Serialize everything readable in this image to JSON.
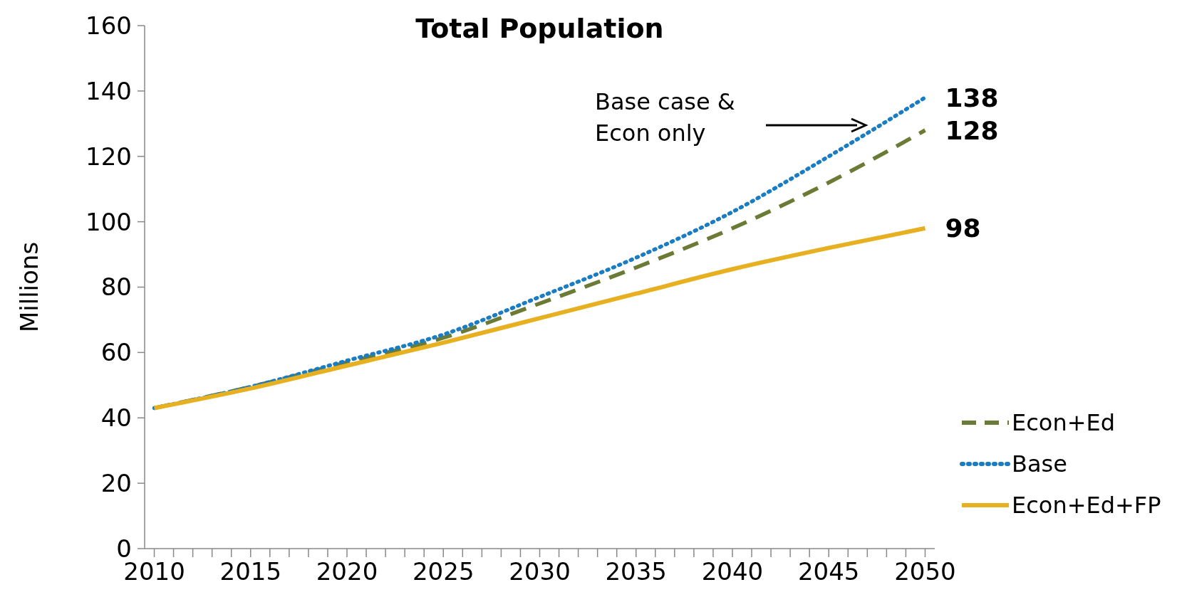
{
  "chart_data": {
    "type": "line",
    "title": "Total Population",
    "ylabel": "Millions",
    "x": [
      2010,
      2015,
      2020,
      2025,
      2030,
      2035,
      2040,
      2045,
      2050
    ],
    "xlim": [
      2009.5,
      2050.5
    ],
    "xticks": [
      2010,
      {
        "value": 2011,
        "label": null
      },
      {
        "value": 2012,
        "label": null
      },
      {
        "value": 2013,
        "label": null
      },
      {
        "value": 2014,
        "label": null
      },
      2015,
      {
        "value": 2016,
        "label": null
      },
      {
        "value": 2017,
        "label": null
      },
      {
        "value": 2018,
        "label": null
      },
      {
        "value": 2019,
        "label": null
      },
      2020,
      {
        "value": 2021,
        "label": null
      },
      {
        "value": 2022,
        "label": null
      },
      {
        "value": 2023,
        "label": null
      },
      {
        "value": 2024,
        "label": null
      },
      2025,
      {
        "value": 2026,
        "label": null
      },
      {
        "value": 2027,
        "label": null
      },
      {
        "value": 2028,
        "label": null
      },
      {
        "value": 2029,
        "label": null
      },
      2030,
      {
        "value": 2031,
        "label": null
      },
      {
        "value": 2032,
        "label": null
      },
      {
        "value": 2033,
        "label": null
      },
      {
        "value": 2034,
        "label": null
      },
      2035,
      {
        "value": 2036,
        "label": null
      },
      {
        "value": 2037,
        "label": null
      },
      {
        "value": 2038,
        "label": null
      },
      {
        "value": 2039,
        "label": null
      },
      2040,
      {
        "value": 2041,
        "label": null
      },
      {
        "value": 2042,
        "label": null
      },
      {
        "value": 2043,
        "label": null
      },
      {
        "value": 2044,
        "label": null
      },
      2045,
      {
        "value": 2046,
        "label": null
      },
      {
        "value": 2047,
        "label": null
      },
      {
        "value": 2048,
        "label": null
      },
      {
        "value": 2049,
        "label": null
      },
      2050
    ],
    "ylim": [
      0,
      160
    ],
    "yticks": [
      0,
      20,
      40,
      60,
      80,
      100,
      120,
      140,
      160
    ],
    "series": [
      {
        "name": "Econ+Ed",
        "color": "#6b7a35",
        "line_style": "dashed",
        "values": [
          43,
          49.5,
          57,
          64.5,
          75,
          86,
          98,
          112,
          128
        ],
        "value_labels": [
          null,
          null,
          null,
          null,
          null,
          null,
          null,
          null,
          "128"
        ]
      },
      {
        "name": "Base",
        "color": "#1a7dc4",
        "line_style": "dotted",
        "values": [
          43,
          49.5,
          57.5,
          65.5,
          77,
          89,
          103,
          120,
          138
        ],
        "value_labels": [
          null,
          null,
          null,
          null,
          null,
          null,
          null,
          null,
          "138"
        ]
      },
      {
        "name": "Econ+Ed+FP",
        "color": "#e6b020",
        "line_style": "solid",
        "values": [
          43,
          49,
          56,
          63,
          70.5,
          78,
          85.5,
          92,
          98
        ],
        "value_labels": [
          null,
          null,
          null,
          null,
          null,
          null,
          null,
          null,
          "98"
        ]
      }
    ],
    "annotations": [
      "Base case & Econ only"
    ],
    "legend": "bottom right",
    "grid": false,
    "marker": "none"
  }
}
